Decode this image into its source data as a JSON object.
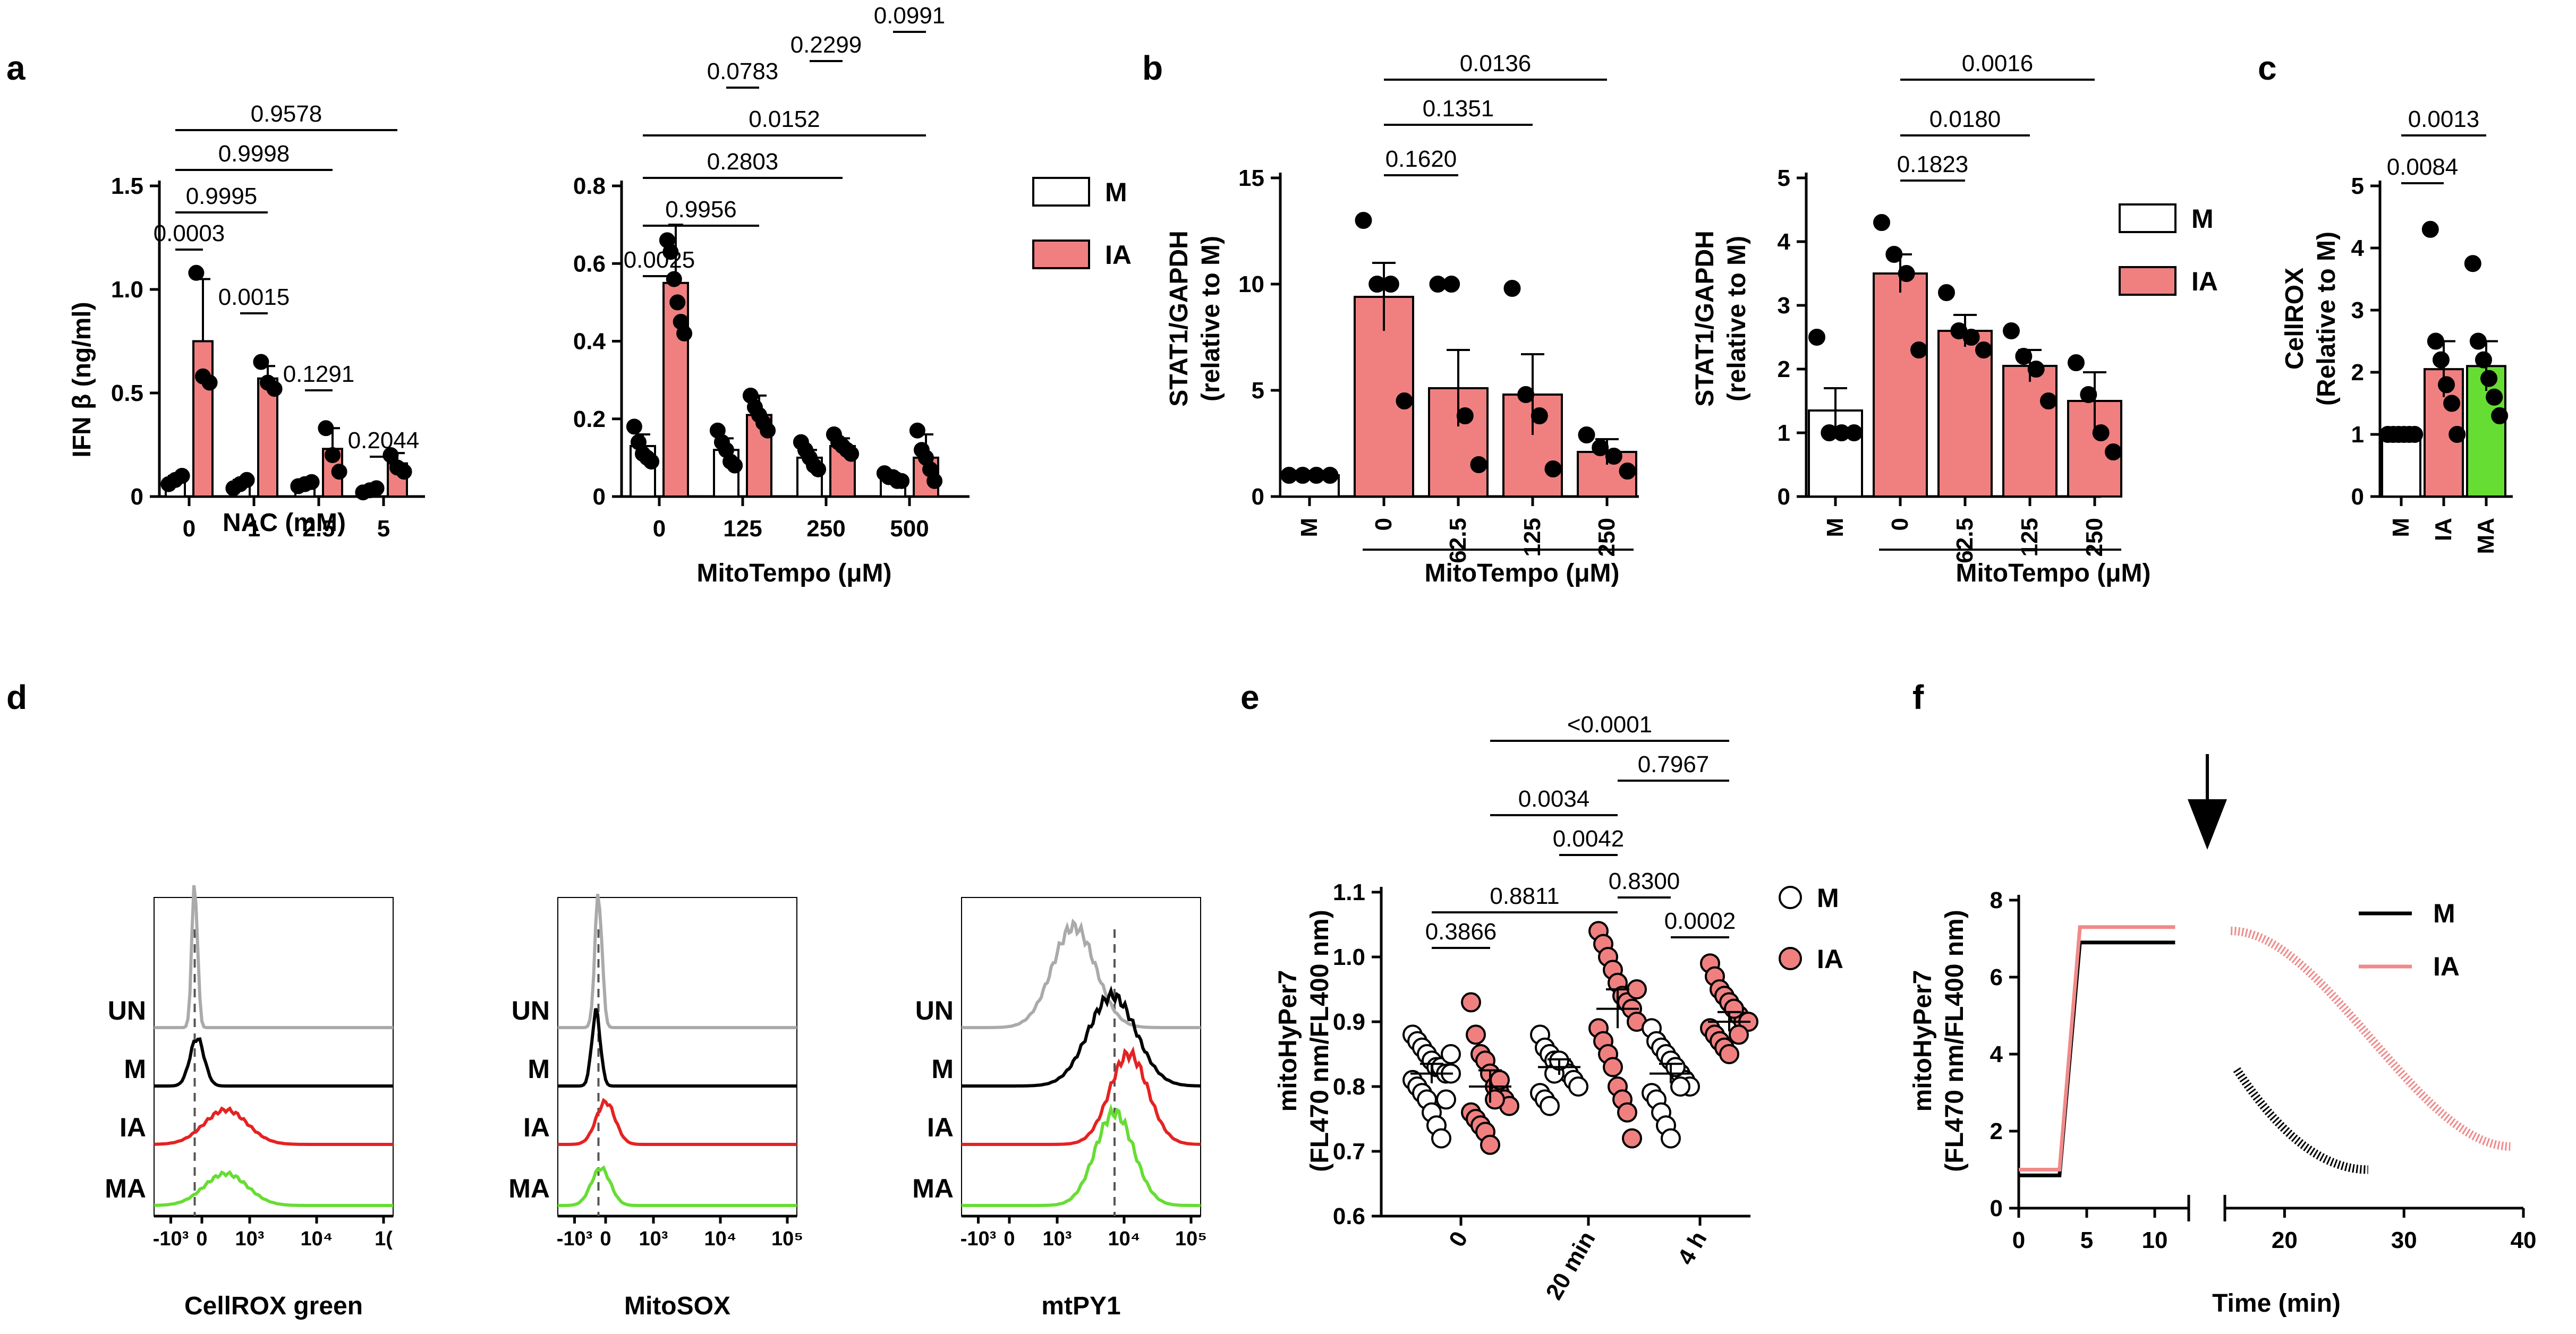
{
  "colors": {
    "m": "#ffffff",
    "ia": "#f08080",
    "ma": "#66dd33",
    "ia_line": "#e52222",
    "ia_trace": "#f08a8a",
    "un_line": "#aaaaaa",
    "m_line": "#000000"
  },
  "panels": {
    "a": "a",
    "b": "b",
    "c": "c",
    "d": "d",
    "e": "e",
    "f": "f"
  },
  "chart_data": [
    {
      "id": "a_nac",
      "type": "bar",
      "ylabel": "IFN β (ng/ml)",
      "xlabel": "NAC (mM)",
      "ylim": [
        0,
        1.5
      ],
      "yticks": [
        "0",
        "0.5",
        "1.0",
        "1.5"
      ],
      "ytick_values": [
        0,
        0.5,
        1.0,
        1.5
      ],
      "categories": [
        "0",
        "1",
        "2.5",
        "5"
      ],
      "series": [
        {
          "name": "M",
          "values": [
            0.08,
            0.06,
            0.06,
            0.03
          ],
          "errors": [
            0.02,
            0.02,
            0.01,
            0.01
          ],
          "points": [
            [
              0.06,
              0.08,
              0.1
            ],
            [
              0.04,
              0.06,
              0.08
            ],
            [
              0.05,
              0.06,
              0.07
            ],
            [
              0.02,
              0.03,
              0.04
            ]
          ]
        },
        {
          "name": "IA",
          "values": [
            0.75,
            0.57,
            0.23,
            0.16
          ],
          "errors": [
            0.3,
            0.06,
            0.1,
            0.05
          ],
          "points": [
            [
              1.08,
              0.58,
              0.55
            ],
            [
              0.65,
              0.55,
              0.52
            ],
            [
              0.33,
              0.2,
              0.12
            ],
            [
              0.2,
              0.14,
              0.12
            ]
          ]
        }
      ],
      "comparisons": [
        {
          "from": [
            0,
            0
          ],
          "to": [
            0,
            1
          ],
          "label": "0.0003"
        },
        {
          "from": [
            0,
            0
          ],
          "to": [
            1,
            1
          ],
          "label": "0.9995"
        },
        {
          "from": [
            0,
            0
          ],
          "to": [
            2,
            1
          ],
          "label": "0.9998"
        },
        {
          "from": [
            0,
            0
          ],
          "to": [
            3,
            1
          ],
          "label": "0.9578"
        },
        {
          "from": [
            1,
            0
          ],
          "to": [
            1,
            1
          ],
          "label": "0.0015"
        },
        {
          "from": [
            2,
            0
          ],
          "to": [
            2,
            1
          ],
          "label": "0.1291"
        },
        {
          "from": [
            3,
            0
          ],
          "to": [
            3,
            1
          ],
          "label": "0.2044"
        }
      ]
    },
    {
      "id": "a_mito",
      "type": "bar",
      "ylabel": "",
      "xlabel": "MitoTempo (μM)",
      "ylim": [
        0,
        0.8
      ],
      "yticks": [
        "0",
        "0.2",
        "0.4",
        "0.6",
        "0.8"
      ],
      "ytick_values": [
        0,
        0.2,
        0.4,
        0.6,
        0.8
      ],
      "categories": [
        "0",
        "125",
        "250",
        "500"
      ],
      "series": [
        {
          "name": "M",
          "values": [
            0.13,
            0.12,
            0.1,
            0.05
          ],
          "errors": [
            0.03,
            0.03,
            0.02,
            0.01
          ],
          "points": [
            [
              0.18,
              0.14,
              0.11,
              0.1,
              0.09
            ],
            [
              0.17,
              0.14,
              0.12,
              0.09,
              0.08
            ],
            [
              0.14,
              0.12,
              0.1,
              0.08,
              0.07
            ],
            [
              0.06,
              0.05,
              0.05,
              0.04,
              0.04
            ]
          ]
        },
        {
          "name": "IA",
          "values": [
            0.55,
            0.21,
            0.13,
            0.1
          ],
          "errors": [
            0.15,
            0.05,
            0.02,
            0.06
          ],
          "points": [
            [
              0.66,
              0.63,
              0.56,
              0.5,
              0.45,
              0.42
            ],
            [
              0.26,
              0.23,
              0.21,
              0.19,
              0.17
            ],
            [
              0.16,
              0.14,
              0.13,
              0.12,
              0.11
            ],
            [
              0.17,
              0.12,
              0.1,
              0.07,
              0.04
            ]
          ]
        }
      ],
      "comparisons": [
        {
          "from": [
            0,
            0
          ],
          "to": [
            0,
            1
          ],
          "label": "0.0025"
        },
        {
          "from": [
            0,
            0
          ],
          "to": [
            1,
            1
          ],
          "label": "0.9956"
        },
        {
          "from": [
            0,
            0
          ],
          "to": [
            2,
            1
          ],
          "label": "0.2803"
        },
        {
          "from": [
            0,
            0
          ],
          "to": [
            3,
            1
          ],
          "label": "0.0152"
        },
        {
          "from": [
            1,
            0
          ],
          "to": [
            1,
            1
          ],
          "label": "0.0783"
        },
        {
          "from": [
            2,
            0
          ],
          "to": [
            2,
            1
          ],
          "label": "0.2299"
        },
        {
          "from": [
            3,
            0
          ],
          "to": [
            3,
            1
          ],
          "label": "0.0991"
        }
      ],
      "legend": [
        "M",
        "IA"
      ]
    },
    {
      "id": "b1",
      "type": "bar",
      "ylabel": "STAT1/GAPDH\n(relative to M)",
      "xlabel": "MitoTempo (μM)",
      "ylim": [
        0,
        15
      ],
      "yticks": [
        "0",
        "5",
        "10",
        "15"
      ],
      "ytick_values": [
        0,
        5,
        10,
        15
      ],
      "categories": [
        "M",
        "0",
        "62.5",
        "125",
        "250"
      ],
      "colors": [
        "m",
        "ia",
        "ia",
        "ia",
        "ia"
      ],
      "values": [
        1,
        9.4,
        5.1,
        4.8,
        2.1
      ],
      "errors": [
        0,
        1.6,
        1.8,
        1.9,
        0.6
      ],
      "points": [
        [
          1,
          1,
          1,
          1
        ],
        [
          13,
          10,
          10,
          4.5
        ],
        [
          10,
          10,
          3.8,
          1.5
        ],
        [
          9.8,
          4.8,
          3.8,
          1.3
        ],
        [
          2.9,
          2.3,
          1.9,
          1.2
        ]
      ],
      "comparisons": [
        {
          "from": 1,
          "to": 2,
          "label": "0.1620"
        },
        {
          "from": 1,
          "to": 3,
          "label": "0.1351"
        },
        {
          "from": 1,
          "to": 4,
          "label": "0.0136"
        }
      ]
    },
    {
      "id": "b2",
      "type": "bar",
      "ylabel": "STAT1/GAPDH\n(relative to M)",
      "xlabel": "MitoTempo (μM)",
      "ylim": [
        0,
        5
      ],
      "yticks": [
        "0",
        "1",
        "2",
        "3",
        "4",
        "5"
      ],
      "ytick_values": [
        0,
        1,
        2,
        3,
        4,
        5
      ],
      "categories": [
        "M",
        "0",
        "62.5",
        "125",
        "250"
      ],
      "colors": [
        "m",
        "ia",
        "ia",
        "ia",
        "ia"
      ],
      "values": [
        1.35,
        3.5,
        2.6,
        2.05,
        1.5
      ],
      "errors": [
        0.35,
        0.3,
        0.25,
        0.25,
        0.45
      ],
      "points": [
        [
          2.5,
          1.0,
          1.0,
          1.0
        ],
        [
          4.3,
          3.8,
          3.5,
          2.3
        ],
        [
          3.2,
          2.6,
          2.5,
          2.3
        ],
        [
          2.6,
          2.2,
          2.0,
          1.5
        ],
        [
          2.1,
          1.6,
          1.0,
          0.7
        ]
      ],
      "comparisons": [
        {
          "from": 1,
          "to": 2,
          "label": "0.1823"
        },
        {
          "from": 1,
          "to": 3,
          "label": "0.0180"
        },
        {
          "from": 1,
          "to": 4,
          "label": "0.0016"
        }
      ],
      "legend": [
        "M",
        "IA"
      ]
    },
    {
      "id": "c",
      "type": "bar",
      "ylabel": "CellROX\n(Relative to  M)",
      "xlabel": "",
      "ylim": [
        0,
        5
      ],
      "yticks": [
        "0",
        "1",
        "2",
        "3",
        "4",
        "5"
      ],
      "ytick_values": [
        0,
        1,
        2,
        3,
        4,
        5
      ],
      "categories": [
        "M",
        "IA",
        "MA"
      ],
      "colors": [
        "m",
        "ia",
        "ma"
      ],
      "values": [
        1.0,
        2.05,
        2.1
      ],
      "errors": [
        0.02,
        0.45,
        0.4
      ],
      "points": [
        [
          1.0,
          1.0,
          1.0,
          1.0,
          1.0,
          1.0
        ],
        [
          4.3,
          2.5,
          2.2,
          1.8,
          1.5,
          1.0
        ],
        [
          3.75,
          2.5,
          2.2,
          1.9,
          1.6,
          1.3
        ]
      ],
      "comparisons": [
        {
          "from": 0,
          "to": 1,
          "label": "0.0084"
        },
        {
          "from": 0,
          "to": 2,
          "label": "0.0013"
        }
      ]
    },
    {
      "id": "e",
      "type": "scatter",
      "ylabel": "mitoHyPer7\n(FL470 nm/FL400 nm)",
      "xlabel": "",
      "ylim": [
        0.6,
        1.1
      ],
      "yticks": [
        "0.6",
        "0.7",
        "0.8",
        "0.9",
        "1.0",
        "1.1"
      ],
      "ytick_values": [
        0.6,
        0.7,
        0.8,
        0.9,
        1.0,
        1.1
      ],
      "categories": [
        "0",
        "20 min",
        "4 h"
      ],
      "series": [
        {
          "name": "M",
          "means": [
            0.82,
            0.83,
            0.82
          ],
          "errors": [
            0.015,
            0.012,
            0.015
          ],
          "points": [
            [
              0.88,
              0.87,
              0.86,
              0.85,
              0.84,
              0.83,
              0.83,
              0.82,
              0.82,
              0.81,
              0.8,
              0.79,
              0.78,
              0.76,
              0.74,
              0.72,
              0.78,
              0.85
            ],
            [
              0.88,
              0.86,
              0.85,
              0.84,
              0.83,
              0.83,
              0.82,
              0.81,
              0.8,
              0.79,
              0.78,
              0.77,
              0.82,
              0.84
            ],
            [
              0.89,
              0.87,
              0.86,
              0.85,
              0.84,
              0.83,
              0.82,
              0.81,
              0.8,
              0.79,
              0.78,
              0.76,
              0.74,
              0.72,
              0.83,
              0.8
            ]
          ]
        },
        {
          "name": "IA",
          "means": [
            0.8,
            0.92,
            0.9
          ],
          "errors": [
            0.025,
            0.03,
            0.015
          ],
          "points": [
            [
              0.93,
              0.88,
              0.85,
              0.84,
              0.82,
              0.8,
              0.79,
              0.78,
              0.77,
              0.76,
              0.75,
              0.74,
              0.73,
              0.71,
              0.78,
              0.81
            ],
            [
              1.04,
              1.02,
              1.0,
              0.98,
              0.96,
              0.94,
              0.93,
              0.92,
              0.9,
              0.89,
              0.87,
              0.85,
              0.83,
              0.8,
              0.78,
              0.76,
              0.72,
              0.95
            ],
            [
              0.99,
              0.97,
              0.95,
              0.94,
              0.93,
              0.92,
              0.91,
              0.9,
              0.9,
              0.89,
              0.88,
              0.87,
              0.86,
              0.85,
              0.92,
              0.88
            ]
          ]
        }
      ],
      "comparisons": [
        {
          "from": [
            0,
            0
          ],
          "to": [
            0,
            1
          ],
          "label": "0.3866"
        },
        {
          "from": [
            0,
            0
          ],
          "to": [
            1,
            1
          ],
          "label": "0.8811"
        },
        {
          "from": [
            0,
            1
          ],
          "to": [
            1,
            1
          ],
          "label": "0.0034"
        },
        {
          "from": [
            0,
            1
          ],
          "to": [
            2,
            1
          ],
          "label": "<0.0001"
        },
        {
          "from": [
            1,
            0
          ],
          "to": [
            1,
            1
          ],
          "label": "0.0042"
        },
        {
          "from": [
            1,
            1
          ],
          "to": [
            2,
            1
          ],
          "label": "0.7967"
        },
        {
          "from": [
            1,
            1
          ],
          "to": [
            2,
            0
          ],
          "label": "0.8300"
        },
        {
          "from": [
            2,
            0
          ],
          "to": [
            2,
            1
          ],
          "label": "0.0002"
        }
      ],
      "legend": [
        "M",
        "IA"
      ]
    },
    {
      "id": "f",
      "type": "line",
      "ylabel": "mitoHyPer7\n(FL470 nm/FL400 nm)",
      "xlabel": "Time (min)",
      "ylim": [
        0,
        8
      ],
      "yticks": [
        "0",
        "2",
        "4",
        "6",
        "8"
      ],
      "ytick_values": [
        0,
        2,
        4,
        6,
        8
      ],
      "xticks": [
        "0",
        "5",
        "10",
        "20",
        "30",
        "40"
      ],
      "xtick_values": [
        0,
        5,
        10,
        20,
        30,
        40
      ],
      "break": [
        12.5,
        15
      ],
      "series": [
        {
          "name": "M",
          "pre": {
            "baseline": 0.85,
            "rise_start": 3,
            "rise_end": 4.5,
            "plateau": 6.9
          },
          "post": {
            "start": 16,
            "end": 27,
            "y0": 3.6,
            "y1": 1.0
          }
        },
        {
          "name": "IA",
          "pre": {
            "baseline": 1.0,
            "rise_start": 3,
            "rise_end": 4.5,
            "plateau": 7.3
          },
          "post": {
            "start": 15.5,
            "end": 39,
            "y0": 7.2,
            "y1": 1.6
          }
        }
      ],
      "legend": [
        "M",
        "IA"
      ]
    }
  ],
  "histograms": {
    "rows": [
      "UN",
      "M",
      "IA",
      "MA"
    ],
    "panels": [
      {
        "id": "cellrox",
        "xlabel": "CellROX green",
        "ticks": [
          "-10³",
          "0",
          "10³",
          "10⁴",
          "1("
        ]
      },
      {
        "id": "mitosox",
        "xlabel": "MitoSOX",
        "ticks": [
          "-10³",
          "0",
          "10³",
          "10⁴",
          "10⁵"
        ]
      },
      {
        "id": "mtpy1",
        "xlabel": "mtPY1",
        "ticks": [
          "-10³",
          "0",
          "10³",
          "10⁴",
          "10⁵"
        ]
      }
    ]
  },
  "text": {
    "a_ylabel": "IFN β (ng/ml)",
    "a_x1": "NAC (mM)",
    "a_x2": "MitoTempo (μM)",
    "b1_y1": "STAT1/GAPDH",
    "b1_y2": "(relative to M)",
    "b_x": "MitoTempo (μM)",
    "c_y1": "CellROX",
    "c_y2": "(Relative to  M)",
    "e_y1": "mitoHyPer7",
    "e_y2": "(FL470 nm/FL400 nm)",
    "f_y1": "mitoHyPer7",
    "f_y2": "(FL470 nm/FL400 nm)",
    "f_x": "Time (min)",
    "leg_m": "M",
    "leg_ia": "IA"
  }
}
